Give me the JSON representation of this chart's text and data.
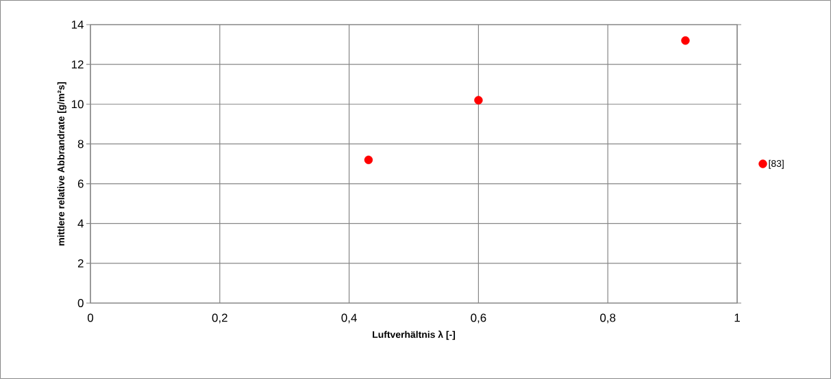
{
  "chart_data": {
    "type": "scatter",
    "xlabel": "Luftverhältnis λ [-]",
    "ylabel": "mittlere relative Abbrandrate [g/m²s]",
    "series": [
      {
        "name": "[83]",
        "color": "#ff0000",
        "x": [
          0.43,
          0.6,
          0.92
        ],
        "values": [
          7.2,
          10.2,
          13.2
        ]
      }
    ],
    "xlim": [
      0,
      1
    ],
    "ylim": [
      0,
      14
    ],
    "xticks": [
      0,
      {
        "value": 0.2,
        "label": "0,2"
      },
      {
        "value": 0.4,
        "label": "0,4"
      },
      {
        "value": 0.6,
        "label": "0,6"
      },
      {
        "value": 0.8,
        "label": "0,8"
      },
      1
    ],
    "yticks": [
      0,
      2,
      4,
      6,
      8,
      10,
      12,
      14
    ],
    "grid": true,
    "legend": "right",
    "marker": "circle"
  }
}
